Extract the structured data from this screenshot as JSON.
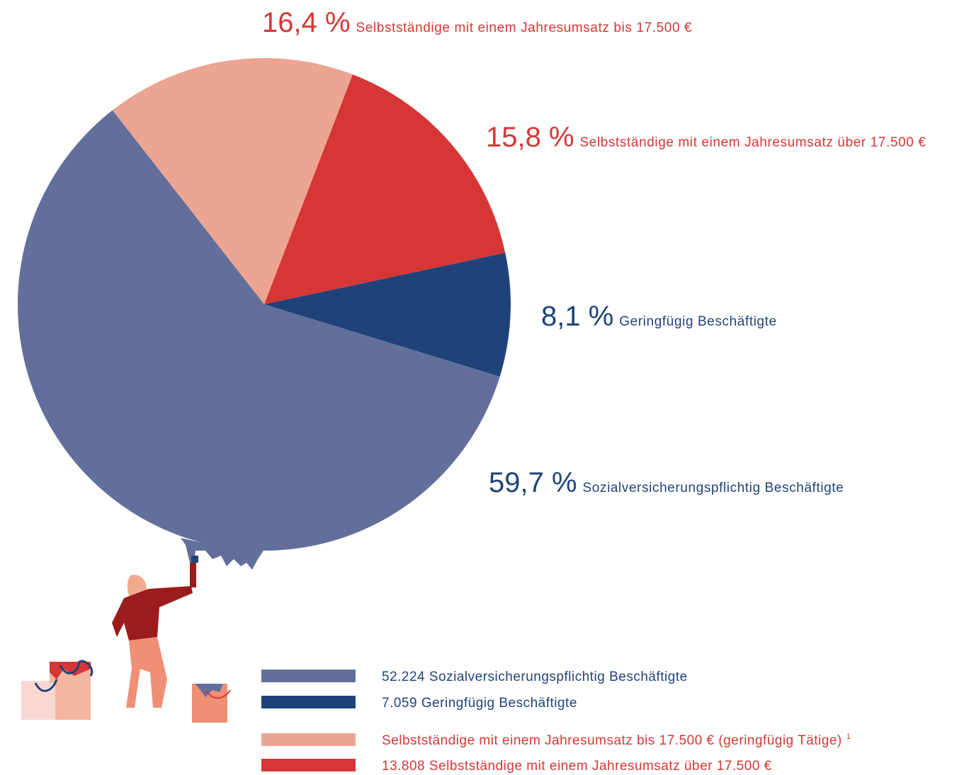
{
  "chart_data": {
    "type": "pie",
    "categories": [
      "Selbstständige mit einem Jahresumsatz bis 17.500 €",
      "Selbstständige mit einem Jahresumsatz über 17.500 €",
      "Geringfügig Beschäftigte",
      "Sozialversicherungspflichtig Beschäftigte"
    ],
    "values": [
      16.4,
      15.8,
      8.1,
      59.7
    ],
    "value_labels": [
      "16,4 %",
      "15,8 %",
      "8,1 %",
      "59,7 %"
    ],
    "colors": [
      "#eba592",
      "#d73636",
      "#1f4379",
      "#636f9b"
    ],
    "label_colors": [
      "#d73636",
      "#d73636",
      "#1f4379",
      "#1f4379"
    ],
    "legend": [
      {
        "text": "52.224 Sozialversicherungspflichtig Beschäftigte",
        "color": "#636f9b",
        "text_color": "#1f4379"
      },
      {
        "text": "7.059 Geringfügig Beschäftigte",
        "color": "#1f4379",
        "text_color": "#1f4379"
      },
      {
        "text": "Selbstständige mit einem Jahresumsatz bis 17.500 € (geringfügig Tätige)",
        "color": "#eba592",
        "text_color": "#d73636",
        "note": "1"
      },
      {
        "text": "13.808 Selbstständige mit einem Jahresumsatz über 17.500 €",
        "color": "#d73636",
        "text_color": "#d73636"
      }
    ]
  }
}
